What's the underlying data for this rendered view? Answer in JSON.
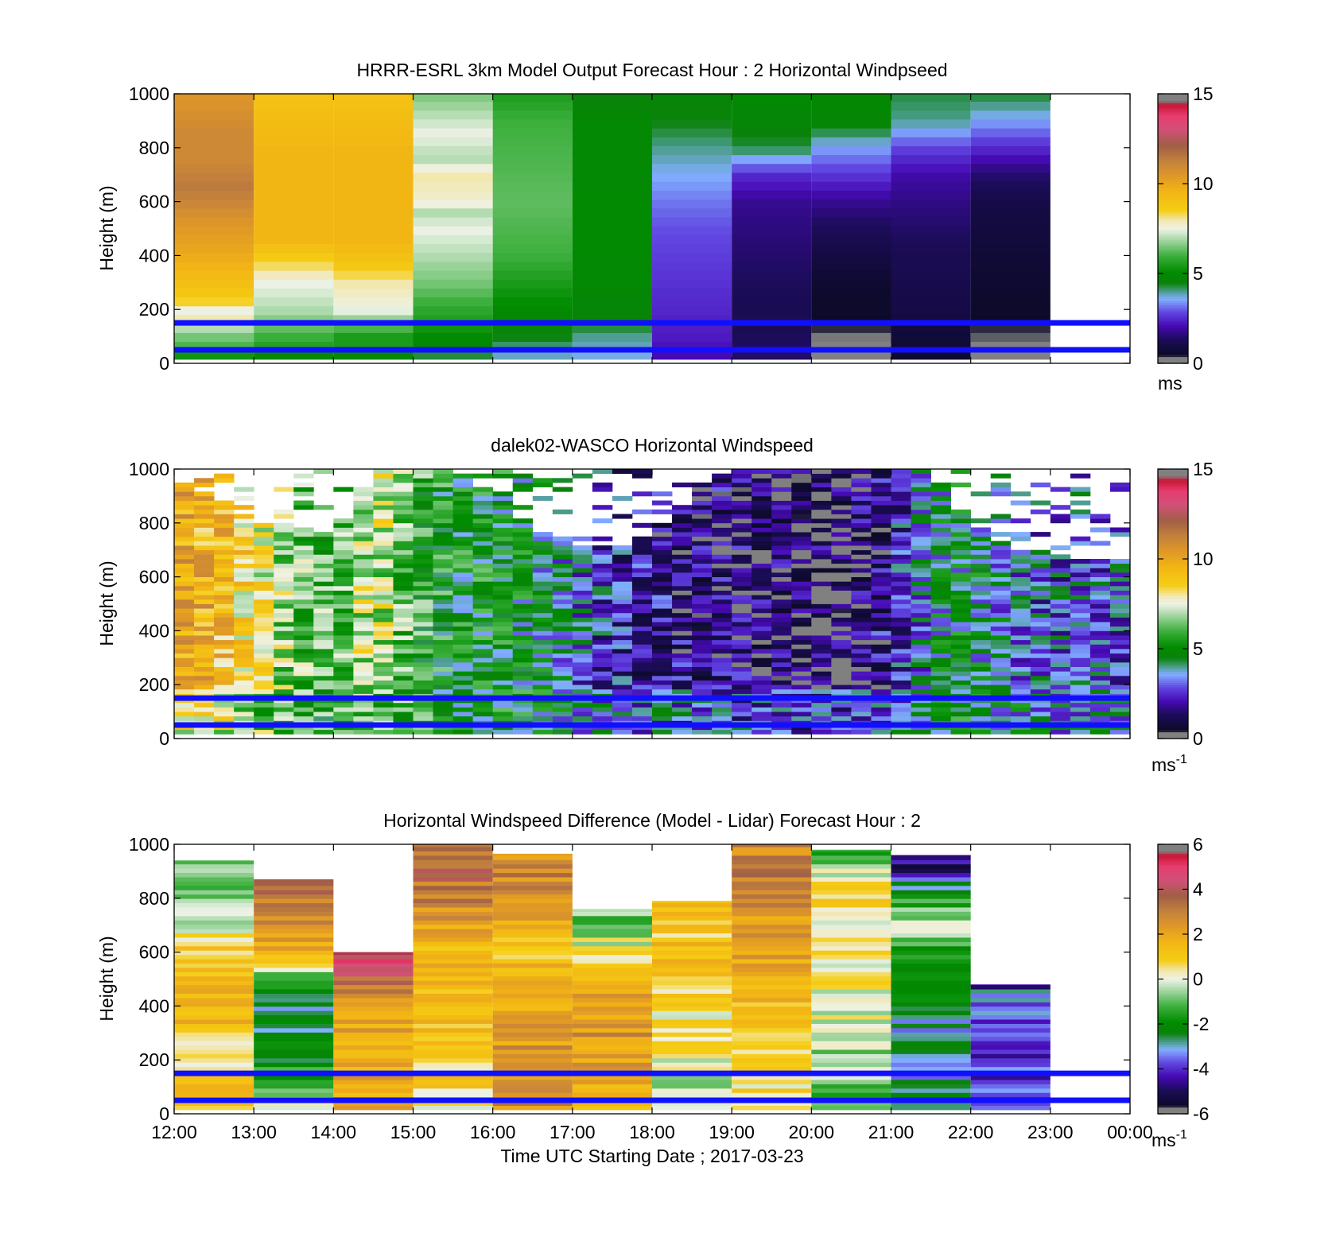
{
  "chart_data": [
    {
      "type": "heatmap",
      "title": "HRRR-ESRL 3km Model Output   Forecast Hour : 2 Horizontal Windpseed",
      "ylabel": "Height (m)",
      "yticks": [
        "0",
        "200",
        "400",
        "600",
        "800",
        "1000"
      ],
      "ylim": [
        0,
        1000
      ],
      "xlim": [
        0,
        12
      ],
      "colorbar": {
        "ticks": [
          "0",
          "5",
          "10",
          "15"
        ],
        "range": [
          0,
          15
        ],
        "unit": "ms",
        "unit_sup": ""
      },
      "reference_lines_m": [
        150,
        50
      ],
      "columns": [
        {
          "hour": 0,
          "profile": [
            [
              0,
              4.2
            ],
            [
              50,
              6
            ],
            [
              100,
              6.5
            ],
            [
              130,
              7
            ],
            [
              160,
              8
            ],
            [
              200,
              7.5
            ],
            [
              230,
              8.5
            ],
            [
              280,
              9
            ],
            [
              340,
              9.5
            ],
            [
              420,
              10
            ],
            [
              520,
              10.5
            ],
            [
              650,
              11.5
            ],
            [
              750,
              11
            ],
            [
              850,
              11
            ],
            [
              1000,
              10.5
            ]
          ]
        },
        {
          "hour": 1,
          "profile": [
            [
              0,
              4
            ],
            [
              50,
              5.5
            ],
            [
              100,
              6
            ],
            [
              150,
              6.5
            ],
            [
              200,
              7
            ],
            [
              300,
              7.5
            ],
            [
              380,
              8.5
            ],
            [
              460,
              9.5
            ],
            [
              550,
              9.5
            ],
            [
              800,
              9.5
            ],
            [
              1000,
              9
            ]
          ]
        },
        {
          "hour": 2,
          "profile": [
            [
              0,
              4
            ],
            [
              50,
              5.5
            ],
            [
              100,
              5.5
            ],
            [
              150,
              6.5
            ],
            [
              200,
              7.5
            ],
            [
              300,
              8
            ],
            [
              380,
              9
            ],
            [
              460,
              9.5
            ],
            [
              600,
              9.5
            ],
            [
              800,
              9.5
            ],
            [
              1000,
              9
            ]
          ]
        },
        {
          "hour": 3,
          "profile": [
            [
              0,
              3.5
            ],
            [
              50,
              4.8
            ],
            [
              100,
              5
            ],
            [
              150,
              5.5
            ],
            [
              200,
              5.8
            ],
            [
              300,
              6.5
            ],
            [
              400,
              7
            ],
            [
              500,
              7.5
            ],
            [
              560,
              7
            ],
            [
              600,
              7.7
            ],
            [
              700,
              8
            ],
            [
              760,
              7
            ],
            [
              800,
              7.2
            ],
            [
              850,
              7.5
            ],
            [
              900,
              7.2
            ],
            [
              1000,
              6.5
            ]
          ]
        },
        {
          "hour": 4,
          "profile": [
            [
              0,
              3.5
            ],
            [
              50,
              4
            ],
            [
              100,
              4.5
            ],
            [
              200,
              5
            ],
            [
              300,
              5.5
            ],
            [
              400,
              6
            ],
            [
              600,
              6.3
            ],
            [
              900,
              6
            ],
            [
              1000,
              5.5
            ]
          ]
        },
        {
          "hour": 5,
          "profile": [
            [
              0,
              3.5
            ],
            [
              50,
              3.8
            ],
            [
              100,
              4
            ],
            [
              150,
              4.5
            ],
            [
              200,
              4.7
            ],
            [
              300,
              4.9
            ],
            [
              500,
              5
            ],
            [
              700,
              4.9
            ],
            [
              900,
              4.9
            ],
            [
              1000,
              4.5
            ]
          ]
        },
        {
          "hour": 6,
          "profile": [
            [
              0,
              2
            ],
            [
              100,
              2.3
            ],
            [
              300,
              2.6
            ],
            [
              500,
              2.9
            ],
            [
              600,
              3.2
            ],
            [
              700,
              3.6
            ],
            [
              800,
              4
            ],
            [
              900,
              4.5
            ],
            [
              1000,
              4.7
            ]
          ]
        },
        {
          "hour": 7,
          "profile": [
            [
              0,
              1.5
            ],
            [
              200,
              1.2
            ],
            [
              400,
              1.5
            ],
            [
              600,
              1.8
            ],
            [
              700,
              2.5
            ],
            [
              800,
              4.3
            ],
            [
              900,
              4.7
            ],
            [
              1000,
              5
            ]
          ]
        },
        {
          "hour": 8,
          "profile": [
            [
              0,
              0
            ],
            [
              50,
              0
            ],
            [
              100,
              0.4
            ],
            [
              300,
              0.6
            ],
            [
              500,
              1.3
            ],
            [
              600,
              1.8
            ],
            [
              800,
              3.5
            ],
            [
              900,
              4.8
            ],
            [
              1000,
              4.9
            ]
          ]
        },
        {
          "hour": 9,
          "profile": [
            [
              0,
              0.5
            ],
            [
              200,
              1
            ],
            [
              400,
              1.2
            ],
            [
              600,
              1.7
            ],
            [
              700,
              2
            ],
            [
              800,
              2.8
            ],
            [
              900,
              4
            ],
            [
              1000,
              4.3
            ]
          ]
        },
        {
          "hour": 10,
          "profile": [
            [
              0,
              0.3
            ],
            [
              200,
              0.5
            ],
            [
              400,
              0.7
            ],
            [
              600,
              1
            ],
            [
              700,
              1.5
            ],
            [
              800,
              2.5
            ],
            [
              900,
              3.5
            ],
            [
              1000,
              4.4
            ]
          ]
        }
      ]
    },
    {
      "type": "heatmap",
      "title": "dalek02-WASCO  Horizontal Windspeed",
      "ylabel": "Height (m)",
      "yticks": [
        "0",
        "200",
        "400",
        "600",
        "800",
        "1000"
      ],
      "ylim": [
        0,
        1000
      ],
      "xlim": [
        0,
        12
      ],
      "colorbar": {
        "ticks": [
          "0",
          "5",
          "10",
          "15"
        ],
        "range": [
          0,
          15
        ],
        "unit": "ms",
        "unit_sup": "-1"
      },
      "reference_lines_m": [
        150,
        50
      ],
      "time_columns": 48,
      "range_gates": 60,
      "trend_hours": [
        0,
        0.5,
        1,
        1.5,
        2,
        2.5,
        3,
        3.5,
        4,
        4.5,
        5,
        5.5,
        6,
        6.5,
        7,
        7.5,
        8,
        8.5,
        9,
        9.5,
        10,
        10.5,
        11,
        11.5,
        12
      ],
      "trend_speed": [
        10,
        9.5,
        8,
        6.5,
        6,
        7.5,
        6,
        5,
        5,
        4.5,
        3.5,
        2.5,
        2,
        1.5,
        1.5,
        1.2,
        1,
        1,
        2,
        4,
        4.5,
        3.5,
        3,
        3,
        3
      ],
      "trend_top_m": [
        950,
        870,
        800,
        780,
        760,
        980,
        1000,
        1000,
        900,
        780,
        720,
        700,
        760,
        900,
        1000,
        1000,
        1000,
        1000,
        1000,
        1000,
        800,
        700,
        680,
        650,
        650
      ]
    },
    {
      "type": "heatmap",
      "title": "Horizontal Windspeed Difference (Model - Lidar) Forecast Hour : 2",
      "ylabel": "Height (m)",
      "xlabel": "Time UTC  Starting Date ; 2017-03-23",
      "yticks": [
        "0",
        "200",
        "400",
        "600",
        "800",
        "1000"
      ],
      "ylim": [
        0,
        1000
      ],
      "xlim": [
        0,
        12
      ],
      "xticks": [
        "12:00",
        "13:00",
        "14:00",
        "15:00",
        "16:00",
        "17:00",
        "18:00",
        "19:00",
        "20:00",
        "21:00",
        "22:00",
        "23:00",
        "00:00"
      ],
      "colorbar": {
        "ticks": [
          "6",
          "4",
          "2",
          "0",
          "-2",
          "-4",
          "-6"
        ],
        "range": [
          -6,
          6
        ],
        "unit": "ms",
        "unit_sup": "-1"
      },
      "reference_lines_m": [
        150,
        50
      ],
      "columns": [
        {
          "hour": 0,
          "top_m": 940,
          "profile": [
            [
              0,
              1.5
            ],
            [
              200,
              0.5
            ],
            [
              400,
              1.8
            ],
            [
              600,
              1.2
            ],
            [
              700,
              -0.5
            ],
            [
              800,
              -0.8
            ],
            [
              900,
              -1
            ]
          ]
        },
        {
          "hour": 1,
          "top_m": 870,
          "profile": [
            [
              0,
              0.5
            ],
            [
              100,
              -0.8
            ],
            [
              200,
              -2
            ],
            [
              300,
              -2.5
            ],
            [
              400,
              -2.8
            ],
            [
              500,
              -1.5
            ],
            [
              550,
              1
            ],
            [
              600,
              1.5
            ],
            [
              700,
              2.5
            ],
            [
              800,
              3
            ],
            [
              850,
              4
            ]
          ]
        },
        {
          "hour": 2,
          "top_m": 600,
          "profile": [
            [
              0,
              1.5
            ],
            [
              100,
              2
            ],
            [
              300,
              2
            ],
            [
              400,
              2.5
            ],
            [
              450,
              3
            ],
            [
              500,
              3.5
            ],
            [
              550,
              4.5
            ],
            [
              600,
              5
            ]
          ]
        },
        {
          "hour": 3,
          "top_m": 1000,
          "profile": [
            [
              0,
              0.5
            ],
            [
              200,
              1
            ],
            [
              400,
              1.2
            ],
            [
              600,
              1.5
            ],
            [
              700,
              2.2
            ],
            [
              800,
              3
            ],
            [
              900,
              3.5
            ],
            [
              1000,
              3.5
            ]
          ]
        },
        {
          "hour": 4,
          "top_m": 965,
          "profile": [
            [
              0,
              2.5
            ],
            [
              100,
              2.8
            ],
            [
              200,
              2.5
            ],
            [
              400,
              2
            ],
            [
              500,
              1.5
            ],
            [
              600,
              1.3
            ],
            [
              700,
              1.8
            ],
            [
              800,
              2.5
            ],
            [
              900,
              2.8
            ],
            [
              965,
              2.5
            ]
          ]
        },
        {
          "hour": 5,
          "top_m": 760,
          "profile": [
            [
              0,
              1.2
            ],
            [
              150,
              2
            ],
            [
              300,
              2.5
            ],
            [
              500,
              2
            ],
            [
              600,
              0.5
            ],
            [
              700,
              -0.8
            ],
            [
              760,
              -1
            ]
          ]
        },
        {
          "hour": 6,
          "top_m": 790,
          "profile": [
            [
              0,
              -0.5
            ],
            [
              100,
              -0.3
            ],
            [
              200,
              0
            ],
            [
              300,
              0.5
            ],
            [
              400,
              0.5
            ],
            [
              500,
              1
            ],
            [
              600,
              1.2
            ],
            [
              700,
              1
            ],
            [
              790,
              1
            ]
          ]
        },
        {
          "hour": 7,
          "top_m": 1000,
          "profile": [
            [
              0,
              0.3
            ],
            [
              100,
              0.5
            ],
            [
              200,
              1
            ],
            [
              400,
              1.5
            ],
            [
              600,
              2
            ],
            [
              700,
              2.3
            ],
            [
              800,
              2.8
            ],
            [
              900,
              3
            ],
            [
              1000,
              2.8
            ]
          ]
        },
        {
          "hour": 8,
          "top_m": 980,
          "profile": [
            [
              0,
              -1
            ],
            [
              100,
              -0.8
            ],
            [
              200,
              -0.5
            ],
            [
              300,
              -0.3
            ],
            [
              400,
              0
            ],
            [
              500,
              0.3
            ],
            [
              600,
              0.5
            ],
            [
              700,
              0.5
            ],
            [
              800,
              0.5
            ],
            [
              900,
              0
            ],
            [
              980,
              -2
            ]
          ]
        },
        {
          "hour": 9,
          "top_m": 960,
          "profile": [
            [
              0,
              -2.5
            ],
            [
              100,
              -2.8
            ],
            [
              200,
              -3
            ],
            [
              300,
              -2.8
            ],
            [
              400,
              -2.5
            ],
            [
              500,
              -2
            ],
            [
              600,
              -1.5
            ],
            [
              700,
              -0.5
            ],
            [
              800,
              -1.5
            ],
            [
              900,
              -4.5
            ],
            [
              960,
              -5
            ]
          ]
        },
        {
          "hour": 10,
          "top_m": 480,
          "profile": [
            [
              0,
              -3.5
            ],
            [
              100,
              -3.8
            ],
            [
              200,
              -4
            ],
            [
              300,
              -4
            ],
            [
              400,
              -3.5
            ],
            [
              450,
              -3
            ],
            [
              480,
              -5
            ]
          ]
        }
      ]
    }
  ]
}
